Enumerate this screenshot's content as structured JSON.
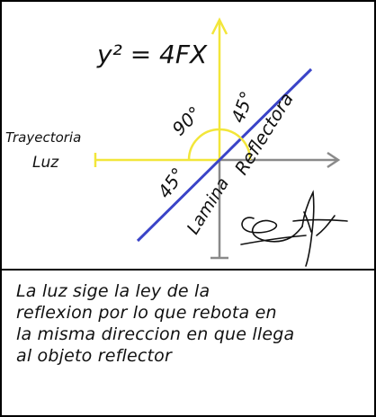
{
  "diagram": {
    "equation": "y² = 4FX",
    "angles": {
      "upper_left": "90°",
      "upper_right": "45°",
      "lower_left": "45°"
    },
    "labels": {
      "trajectory_line1": "Trayectoria",
      "trajectory_line2": "Luz",
      "reflector": "Reflectora",
      "lamina": "Lamina"
    },
    "colors": {
      "y_axis": "#f2e63a",
      "incoming_ray": "#f2e63a",
      "arc": "#f2e63a",
      "reflector_line": "#3a44c8",
      "x_axis": "#8a8a8a",
      "frame": "#000000",
      "ink": "#111111"
    }
  },
  "note": {
    "lines": [
      "La luz sige la ley de la",
      "reflexion por lo que rebota en",
      "la misma direccion en que llega",
      "al objeto reflector"
    ]
  }
}
